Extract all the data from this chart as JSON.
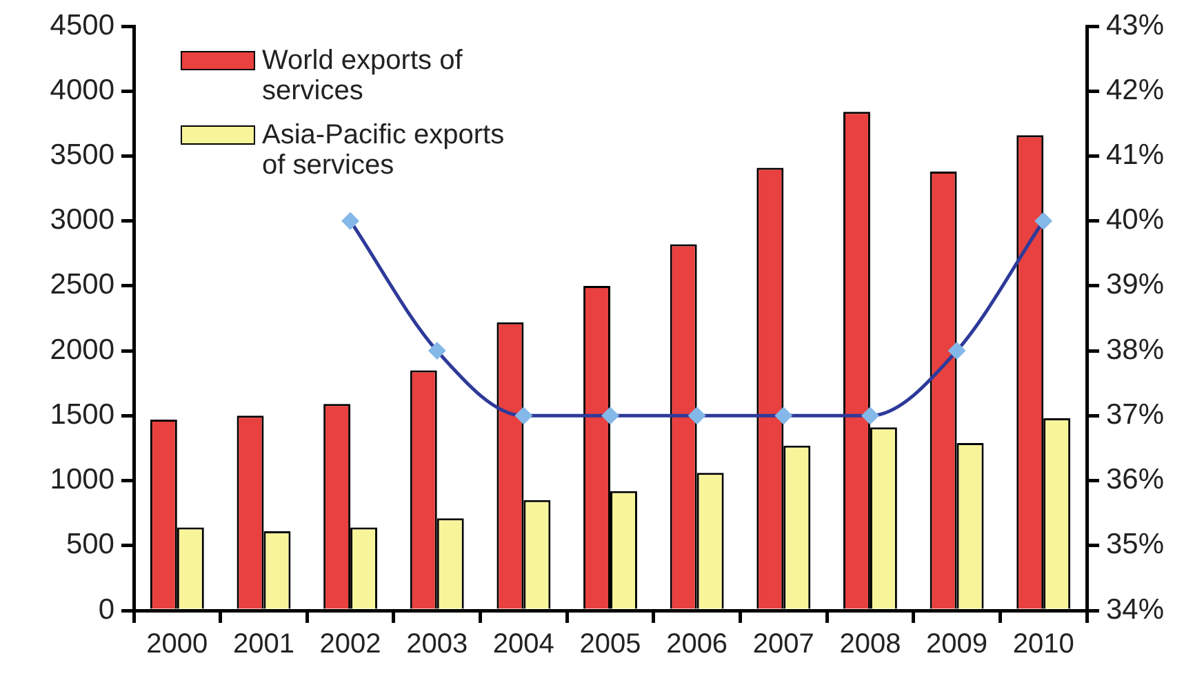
{
  "chart_data": {
    "type": "bar",
    "categories": [
      "2000",
      "2001",
      "2002",
      "2003",
      "2004",
      "2005",
      "2006",
      "2007",
      "2008",
      "2009",
      "2010"
    ],
    "series": [
      {
        "name": "World exports of services",
        "color": "#e8413f",
        "values": [
          1470,
          1500,
          1590,
          1850,
          2220,
          2500,
          2820,
          3410,
          3840,
          3380,
          3660
        ]
      },
      {
        "name": "Asia-Pacific exports of services",
        "color": "#f8f49a",
        "values": [
          640,
          610,
          640,
          710,
          850,
          920,
          1060,
          1270,
          1410,
          1290,
          1480
        ]
      },
      {
        "type": "line",
        "axis": "y2",
        "color": "#2e3a99",
        "colors": [
          "#84b8e8",
          "#84b8e8",
          "#84b8e8",
          "#84b8e8",
          "#84b8e8",
          "#84b8e8",
          "#84b8e8",
          "#84b8e8",
          "#84b8e8",
          "#84b8e8",
          "#84b8e8"
        ],
        "values": [
          null,
          null,
          40,
          38,
          37,
          37,
          37,
          37,
          37,
          38,
          40
        ]
      }
    ],
    "ylim": [
      0,
      4500
    ],
    "yticks": [
      0,
      500,
      1000,
      1500,
      2000,
      2500,
      3000,
      3500,
      4000,
      4500
    ],
    "y2lim": [
      34,
      43
    ],
    "y2ticks": [
      {
        "value": 34,
        "label": "34%"
      },
      {
        "value": 35,
        "label": "35%"
      },
      {
        "value": 36,
        "label": "36%"
      },
      {
        "value": 37,
        "label": "37%"
      },
      {
        "value": 38,
        "label": "38%"
      },
      {
        "value": 39,
        "label": "39%"
      },
      {
        "value": 40,
        "label": "40%"
      },
      {
        "value": 41,
        "label": "41%"
      },
      {
        "value": 42,
        "label": "42%"
      },
      {
        "value": 43,
        "label": "43%"
      }
    ],
    "grid": false,
    "legend": "top left",
    "marker": "diamond",
    "line_style": "solid"
  }
}
